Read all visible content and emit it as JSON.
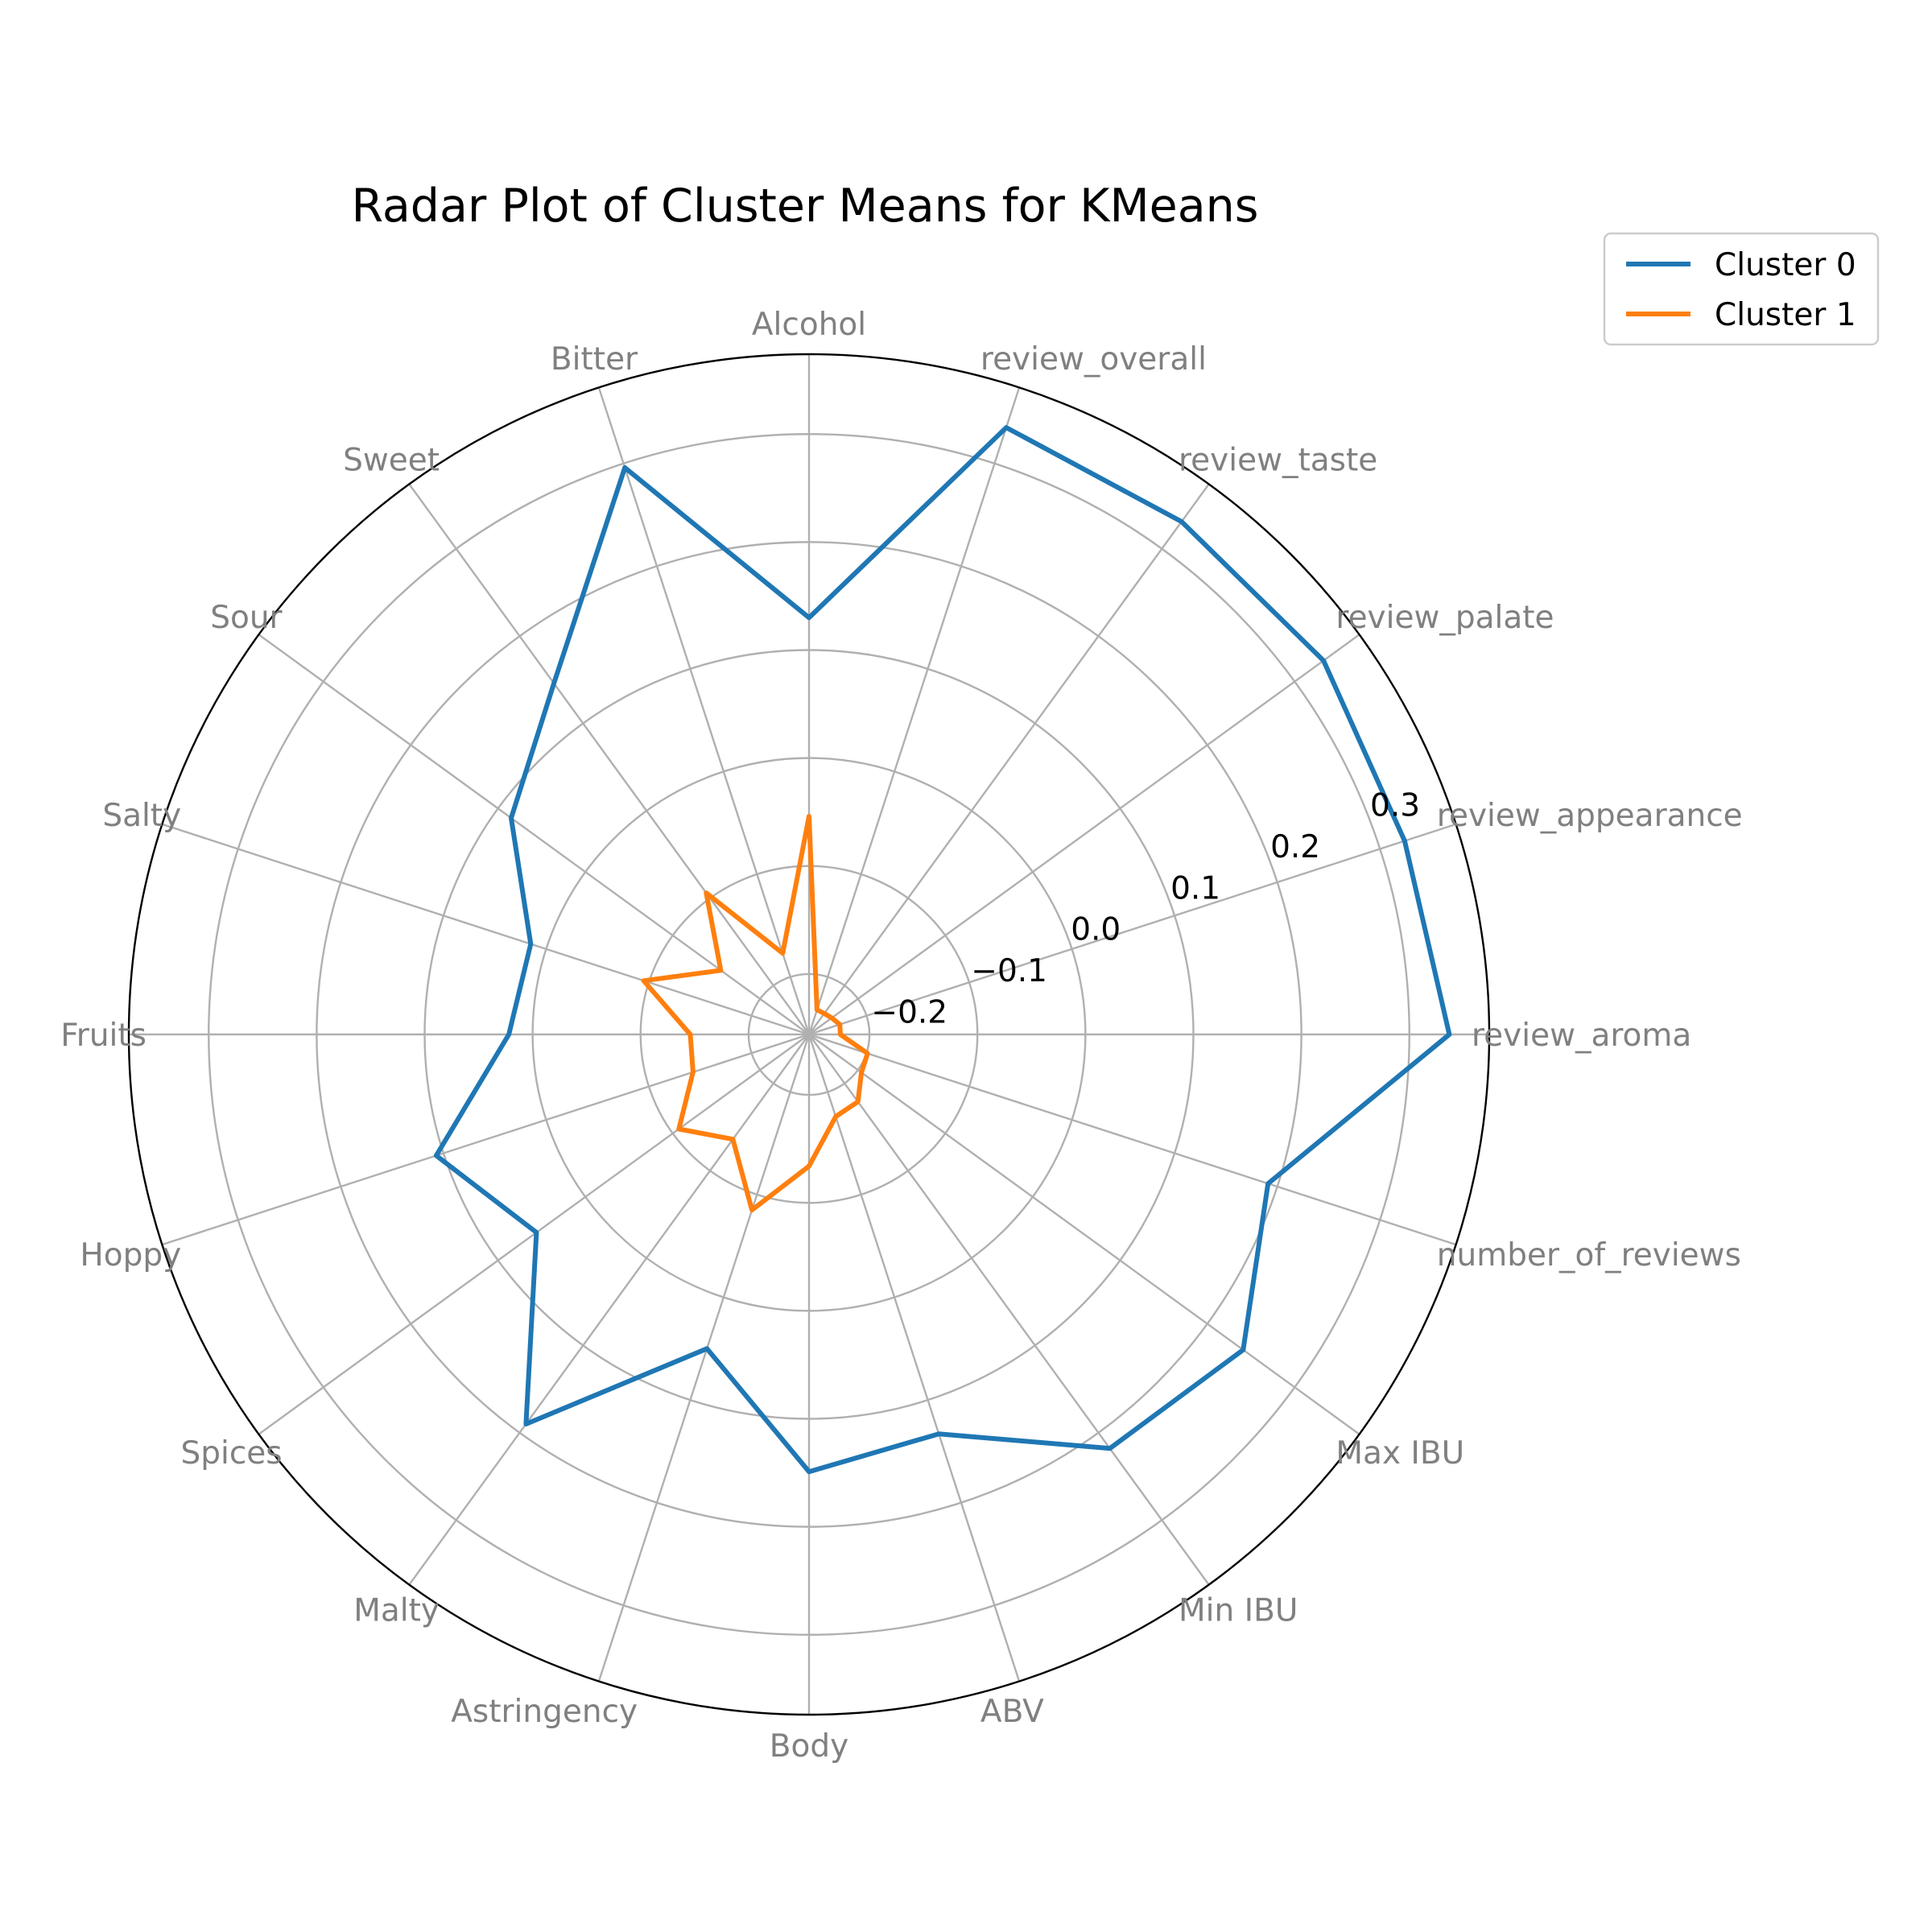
{
  "chart_data": {
    "type": "radar",
    "title": "Radar Plot of Cluster Means for KMeans",
    "categories": [
      "review_aroma",
      "review_appearance",
      "review_palate",
      "review_taste",
      "review_overall",
      "Alcohol",
      "Bitter",
      "Sweet",
      "Sour",
      "Salty",
      "Fruits",
      "Hoppy",
      "Spices",
      "Malty",
      "Astringency",
      "Body",
      "ABV",
      "Min IBU",
      "Max IBU",
      "number_of_reviews"
    ],
    "r_ticks": [
      -0.2,
      -0.1,
      0.0,
      0.1,
      0.2,
      0.3
    ],
    "r_tick_labels": [
      "−0.2",
      "−0.1",
      "0.0",
      "0.1",
      "0.2",
      "0.3"
    ],
    "r_range": [
      -0.256,
      0.374
    ],
    "grid": true,
    "legend_position": "upper right, outside plot",
    "series": [
      {
        "name": "Cluster 0",
        "color": "#1f77b4",
        "values": [
          0.337,
          0.324,
          0.333,
          0.331,
          0.335,
          0.13,
          0.296,
          0.146,
          0.085,
          0.015,
          0.022,
          0.107,
          0.056,
          0.19,
          0.05,
          0.149,
          0.133,
          0.218,
          0.241,
          0.191
        ]
      },
      {
        "name": "Cluster 1",
        "color": "#ff7f0e",
        "values": [
          -0.227,
          -0.226,
          -0.23,
          -0.232,
          -0.232,
          -0.054,
          -0.177,
          -0.094,
          -0.155,
          -0.095,
          -0.146,
          -0.143,
          -0.107,
          -0.136,
          -0.085,
          -0.134,
          -0.176,
          -0.179,
          -0.196,
          -0.199
        ]
      }
    ]
  }
}
